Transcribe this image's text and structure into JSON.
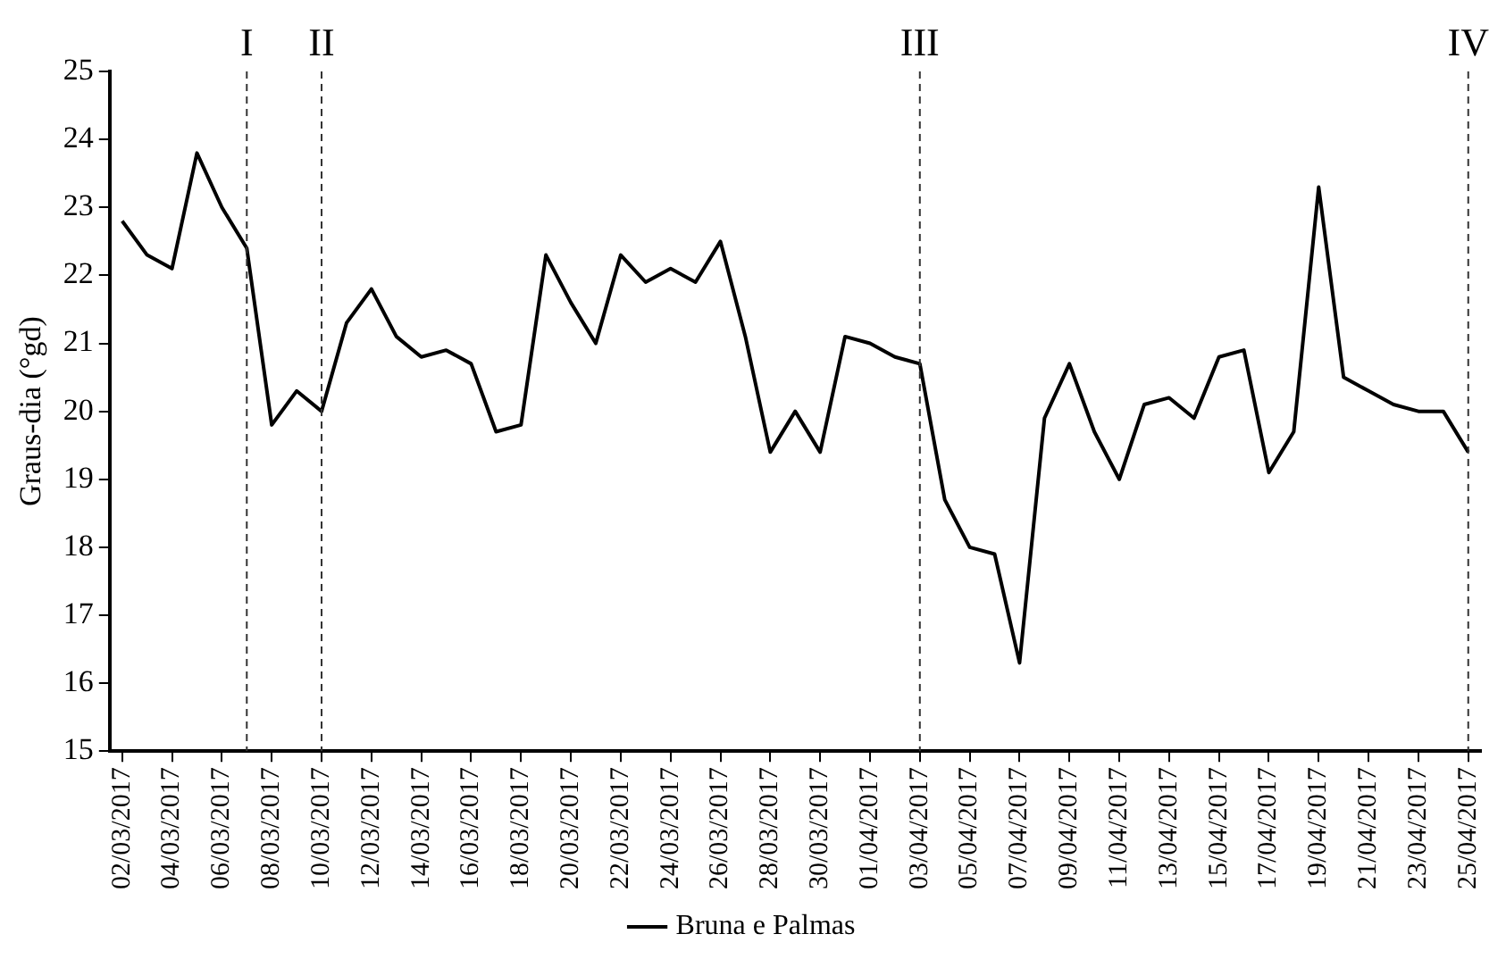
{
  "chart_data": {
    "type": "line",
    "ylabel": "Graus-dia (°gd)",
    "x": [
      "2017-03-02",
      "2017-03-03",
      "2017-03-04",
      "2017-03-05",
      "2017-03-06",
      "2017-03-07",
      "2017-03-08",
      "2017-03-09",
      "2017-03-10",
      "2017-03-11",
      "2017-03-12",
      "2017-03-13",
      "2017-03-14",
      "2017-03-15",
      "2017-03-16",
      "2017-03-17",
      "2017-03-18",
      "2017-03-19",
      "2017-03-20",
      "2017-03-21",
      "2017-03-22",
      "2017-03-23",
      "2017-03-24",
      "2017-03-25",
      "2017-03-26",
      "2017-03-27",
      "2017-03-28",
      "2017-03-29",
      "2017-03-30",
      "2017-03-31",
      "2017-04-01",
      "2017-04-02",
      "2017-04-03",
      "2017-04-04",
      "2017-04-05",
      "2017-04-06",
      "2017-04-07",
      "2017-04-08",
      "2017-04-09",
      "2017-04-10",
      "2017-04-11",
      "2017-04-12",
      "2017-04-13",
      "2017-04-14",
      "2017-04-15",
      "2017-04-16",
      "2017-04-17",
      "2017-04-18",
      "2017-04-19",
      "2017-04-20",
      "2017-04-21",
      "2017-04-22",
      "2017-04-23",
      "2017-04-24",
      "2017-04-25"
    ],
    "series": [
      {
        "name": "Bruna e Palmas",
        "color": "#000000",
        "values": [
          22.8,
          22.3,
          22.1,
          23.8,
          23.0,
          22.4,
          19.8,
          20.3,
          20.0,
          21.3,
          21.8,
          21.1,
          20.8,
          20.9,
          20.7,
          19.7,
          19.8,
          22.3,
          21.6,
          21.0,
          22.3,
          21.9,
          22.1,
          21.9,
          22.5,
          21.1,
          19.4,
          20.0,
          19.4,
          21.1,
          21.0,
          20.8,
          20.7,
          18.7,
          18.0,
          17.9,
          16.3,
          19.9,
          20.7,
          19.7,
          19.0,
          20.1,
          20.2,
          19.9,
          20.8,
          20.9,
          19.1,
          19.7,
          23.3,
          20.5,
          20.3,
          20.1,
          20.0,
          20.0,
          19.4
        ]
      }
    ],
    "xlim": [
      "2017-03-01T12:00",
      "2017-04-25T12:00"
    ],
    "xticks": [
      {
        "value": "2017-03-02",
        "label": "02/03/2017"
      },
      {
        "value": "2017-03-04",
        "label": "04/03/2017"
      },
      {
        "value": "2017-03-06",
        "label": "06/03/2017"
      },
      {
        "value": "2017-03-08",
        "label": "08/03/2017"
      },
      {
        "value": "2017-03-10",
        "label": "10/03/2017"
      },
      {
        "value": "2017-03-12",
        "label": "12/03/2017"
      },
      {
        "value": "2017-03-14",
        "label": "14/03/2017"
      },
      {
        "value": "2017-03-16",
        "label": "16/03/2017"
      },
      {
        "value": "2017-03-18",
        "label": "18/03/2017"
      },
      {
        "value": "2017-03-20",
        "label": "20/03/2017"
      },
      {
        "value": "2017-03-22",
        "label": "22/03/2017"
      },
      {
        "value": "2017-03-24",
        "label": "24/03/2017"
      },
      {
        "value": "2017-03-26",
        "label": "26/03/2017"
      },
      {
        "value": "2017-03-28",
        "label": "28/03/2017"
      },
      {
        "value": "2017-03-30",
        "label": "30/03/2017"
      },
      {
        "value": "2017-04-01",
        "label": "01/04/2017"
      },
      {
        "value": "2017-04-03",
        "label": "03/04/2017"
      },
      {
        "value": "2017-04-05",
        "label": "05/04/2017"
      },
      {
        "value": "2017-04-07",
        "label": "07/04/2017"
      },
      {
        "value": "2017-04-09",
        "label": "09/04/2017"
      },
      {
        "value": "2017-04-11",
        "label": "11/04/2017"
      },
      {
        "value": "2017-04-13",
        "label": "13/04/2017"
      },
      {
        "value": "2017-04-15",
        "label": "15/04/2017"
      },
      {
        "value": "2017-04-17",
        "label": "17/04/2017"
      },
      {
        "value": "2017-04-19",
        "label": "19/04/2017"
      },
      {
        "value": "2017-04-21",
        "label": "21/04/2017"
      },
      {
        "value": "2017-04-23",
        "label": "23/04/2017"
      },
      {
        "value": "2017-04-25",
        "label": "25/04/2017"
      }
    ],
    "ylim": [
      15,
      25
    ],
    "yticks": [
      15,
      16,
      17,
      18,
      19,
      20,
      21,
      22,
      23,
      24,
      25
    ],
    "ref_lines": [
      {
        "axis": "x",
        "value": "2017-03-07",
        "label": "I",
        "line_style": "dashed"
      },
      {
        "axis": "x",
        "value": "2017-03-10",
        "label": "II",
        "line_style": "dashed"
      },
      {
        "axis": "x",
        "value": "2017-04-03",
        "label": "III",
        "line_style": "dashed"
      },
      {
        "axis": "x",
        "value": "2017-04-25",
        "label": "IV",
        "line_style": "dashed"
      }
    ],
    "legend": "bottom",
    "grid": false,
    "marker": "none",
    "line_style": "solid"
  }
}
